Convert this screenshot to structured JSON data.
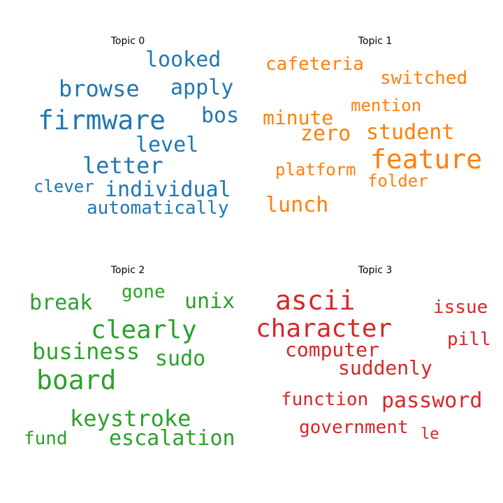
{
  "chart_data": {
    "type": "wordcloud",
    "panels": [
      {
        "title": "Topic 0",
        "color": "#1f77b4",
        "words": [
          "looked",
          "browse",
          "apply",
          "firmware",
          "bos",
          "level",
          "letter",
          "clever",
          "individual",
          "automatically"
        ]
      },
      {
        "title": "Topic 1",
        "color": "#ff7f0e",
        "words": [
          "cafeteria",
          "switched",
          "mention",
          "minute",
          "zero",
          "student",
          "feature",
          "platform",
          "folder",
          "lunch"
        ]
      },
      {
        "title": "Topic 2",
        "color": "#2ca02c",
        "words": [
          "gone",
          "break",
          "unix",
          "clearly",
          "business",
          "sudo",
          "board",
          "keystroke",
          "fund",
          "escalation"
        ]
      },
      {
        "title": "Topic 3",
        "color": "#d62728",
        "words": [
          "ascii",
          "issue",
          "character",
          "pill",
          "computer",
          "suddenly",
          "function",
          "password",
          "government",
          "le"
        ]
      }
    ]
  }
}
